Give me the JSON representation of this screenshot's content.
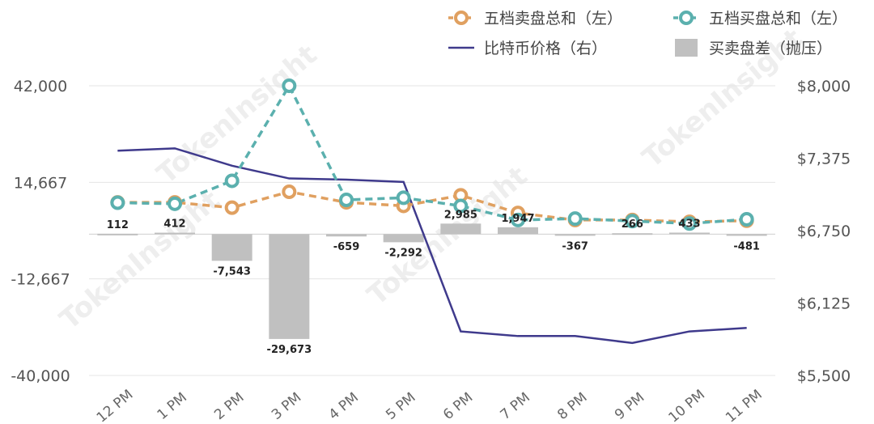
{
  "chart_data": {
    "type": "combo",
    "categories": [
      "12 PM",
      "1 PM",
      "2 PM",
      "3 PM",
      "4 PM",
      "5 PM",
      "6 PM",
      "7 PM",
      "8 PM",
      "9 PM",
      "10 PM",
      "11 PM"
    ],
    "left_axis": {
      "ylim": [
        -40000,
        42000
      ],
      "ticks": [
        42000,
        14667,
        -12667,
        -40000
      ],
      "tick_labels": [
        "42,000",
        "14,667",
        "-12,667",
        "-40,000"
      ]
    },
    "right_axis": {
      "ylim": [
        5500,
        8000
      ],
      "ticks": [
        8000,
        7375,
        6750,
        6125,
        5500
      ],
      "tick_labels": [
        "$8,000",
        "$7,375",
        "$6,750",
        "$6,125",
        "$5,500"
      ]
    },
    "series": [
      {
        "name": "五档卖盘总和（左）",
        "type": "line-marker",
        "axis": "left",
        "color": "#E0A060",
        "values": [
          9000,
          9000,
          7500,
          12000,
          9000,
          8000,
          11000,
          6000,
          4000,
          4000,
          3500,
          3800
        ]
      },
      {
        "name": "五档买盘总和（左）",
        "type": "line-marker",
        "axis": "left",
        "color": "#5BB0AE",
        "values": [
          8900,
          8600,
          15100,
          42000,
          9700,
          10300,
          8000,
          4000,
          4400,
          3700,
          3000,
          4200
        ]
      },
      {
        "name": "比特币价格（右）",
        "type": "line",
        "axis": "right",
        "color": "#3F3A8C",
        "values": [
          7440,
          7460,
          7310,
          7200,
          7190,
          7170,
          5880,
          5840,
          5840,
          5780,
          5880,
          5910
        ]
      },
      {
        "name": "买卖盘差（抛压）",
        "type": "bar",
        "axis": "left",
        "color": "#C0C0C0",
        "values": [
          112,
          412,
          -7543,
          -29673,
          -659,
          -2292,
          2985,
          1947,
          -367,
          266,
          433,
          -481
        ],
        "labels": [
          "112",
          "412",
          "-7,543",
          "-29,673",
          "-659",
          "-2,292",
          "2,985",
          "1,947",
          "-367",
          "266",
          "433",
          "-481"
        ]
      }
    ],
    "legend_position": "top-right",
    "grid": true
  },
  "watermark": "TokenInsight"
}
